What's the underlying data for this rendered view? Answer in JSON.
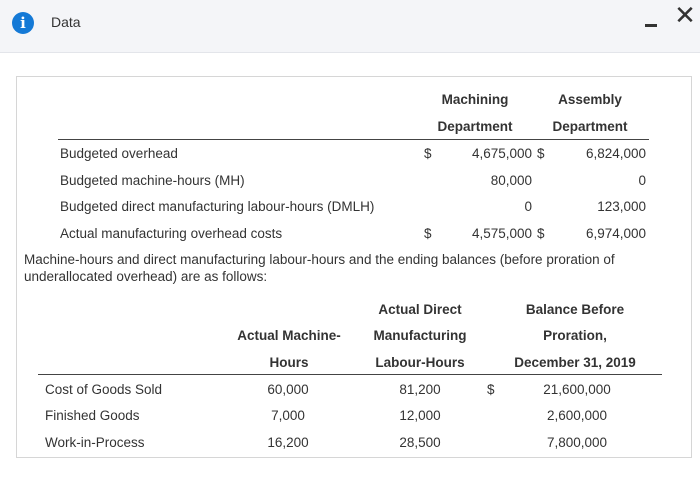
{
  "window": {
    "title": "Data",
    "info_icon": "info-icon",
    "minimize_icon": "minimize-icon",
    "close_icon": "close-icon",
    "close_glyph": "✕"
  },
  "budget_table": {
    "headers": {
      "machining_line1": "Machining",
      "machining_line2": "Department",
      "assembly_line1": "Assembly",
      "assembly_line2": "Department"
    },
    "rows": [
      {
        "label": "Budgeted overhead",
        "dollar1": "$",
        "machining": "4,675,000",
        "dollar2": "$",
        "assembly": "6,824,000"
      },
      {
        "label": "Budgeted machine-hours (MH)",
        "dollar1": "",
        "machining": "80,000",
        "dollar2": "",
        "assembly": "0"
      },
      {
        "label": "Budgeted direct manufacturing labour-hours (DMLH)",
        "dollar1": "",
        "machining": "0",
        "dollar2": "",
        "assembly": "123,000"
      },
      {
        "label": "Actual manufacturing overhead costs",
        "dollar1": "$",
        "machining": "4,575,000",
        "dollar2": "$",
        "assembly": "6,974,000"
      }
    ]
  },
  "paragraph": {
    "line1": "Machine-hours and direct manufacturing labour-hours and the ending balances (before proration of",
    "line2": "underallocated overhead) are as follows:"
  },
  "balance_table": {
    "headers": {
      "mh_line1": "Actual Machine-",
      "mh_line2": "Hours",
      "dmlh_line1": "Actual Direct",
      "dmlh_line2": "Manufacturing",
      "dmlh_line3": "Labour-Hours",
      "bal_line1": "Balance Before",
      "bal_line2": "Proration,",
      "bal_line3": "December 31, 2019"
    },
    "rows": [
      {
        "label": "Cost of Goods Sold",
        "mh": "60,000",
        "dmlh": "81,200",
        "dollar": "$",
        "balance": "21,600,000"
      },
      {
        "label": "Finished Goods",
        "mh": "7,000",
        "dmlh": "12,000",
        "dollar": "",
        "balance": "2,600,000"
      },
      {
        "label": "Work-in-Process",
        "mh": "16,200",
        "dmlh": "28,500",
        "dollar": "",
        "balance": "7,800,000"
      }
    ]
  }
}
